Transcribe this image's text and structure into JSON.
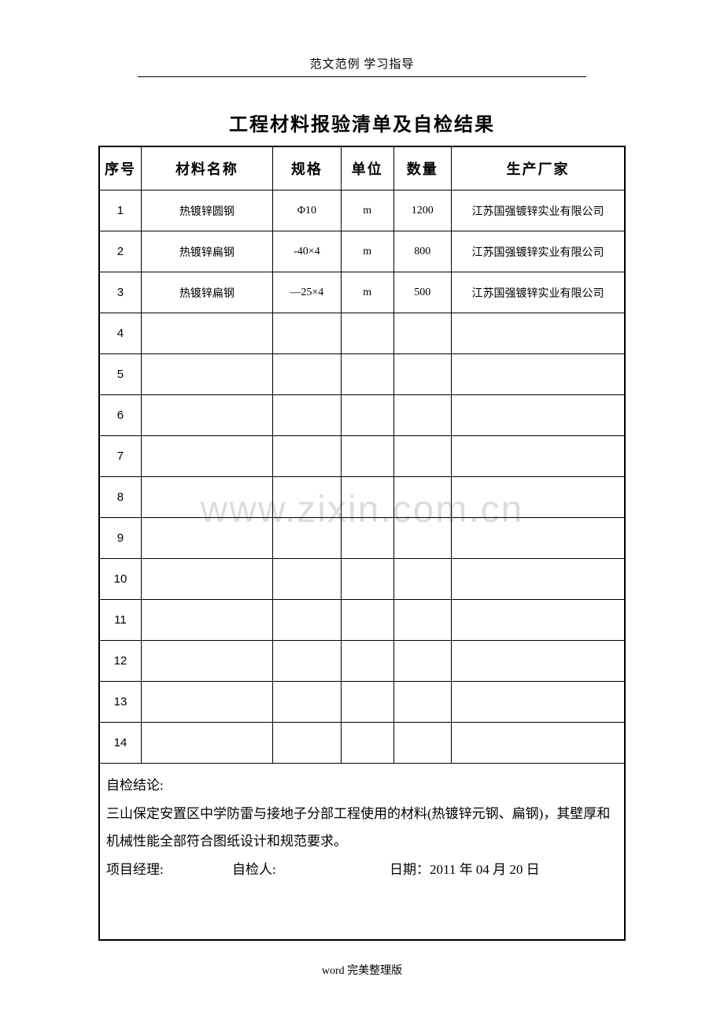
{
  "header": "范文范例  学习指导",
  "title": "工程材料报验清单及自检结果",
  "columns": {
    "seq": "序号",
    "name": "材料名称",
    "spec": "规格",
    "unit": "单位",
    "qty": "数量",
    "mfr": "生产厂家"
  },
  "rows": [
    {
      "seq": "1",
      "name": "热镀锌圆钢",
      "spec": "Φ10",
      "unit": "m",
      "qty": "1200",
      "mfr": "江苏国强镀锌实业有限公司"
    },
    {
      "seq": "2",
      "name": "热镀锌扁钢",
      "spec": "-40×4",
      "unit": "m",
      "qty": "800",
      "mfr": "江苏国强镀锌实业有限公司"
    },
    {
      "seq": "3",
      "name": "热镀锌扁钢",
      "spec": "—25×4",
      "unit": "m",
      "qty": "500",
      "mfr": "江苏国强镀锌实业有限公司"
    },
    {
      "seq": "4",
      "name": "",
      "spec": "",
      "unit": "",
      "qty": "",
      "mfr": ""
    },
    {
      "seq": "5",
      "name": "",
      "spec": "",
      "unit": "",
      "qty": "",
      "mfr": ""
    },
    {
      "seq": "6",
      "name": "",
      "spec": "",
      "unit": "",
      "qty": "",
      "mfr": ""
    },
    {
      "seq": "7",
      "name": "",
      "spec": "",
      "unit": "",
      "qty": "",
      "mfr": ""
    },
    {
      "seq": "8",
      "name": "",
      "spec": "",
      "unit": "",
      "qty": "",
      "mfr": ""
    },
    {
      "seq": "9",
      "name": "",
      "spec": "",
      "unit": "",
      "qty": "",
      "mfr": ""
    },
    {
      "seq": "10",
      "name": "",
      "spec": "",
      "unit": "",
      "qty": "",
      "mfr": ""
    },
    {
      "seq": "11",
      "name": "",
      "spec": "",
      "unit": "",
      "qty": "",
      "mfr": ""
    },
    {
      "seq": "12",
      "name": "",
      "spec": "",
      "unit": "",
      "qty": "",
      "mfr": ""
    },
    {
      "seq": "13",
      "name": "",
      "spec": "",
      "unit": "",
      "qty": "",
      "mfr": ""
    },
    {
      "seq": "14",
      "name": "",
      "spec": "",
      "unit": "",
      "qty": "",
      "mfr": ""
    }
  ],
  "conclusion": {
    "label": "自检结论:",
    "body": "三山保定安置区中学防雷与接地子分部工程使用的材料(热镀锌元钢、扁钢)，其壁厚和机械性能全部符合图纸设计和规范要求。",
    "pm_label": "项目经理:",
    "inspector_label": "自检人:",
    "date_label": "日期：",
    "date_value": "2011 年 04 月 20 日"
  },
  "footer": "word 完美整理版",
  "watermark": "www.zixin.com.cn"
}
